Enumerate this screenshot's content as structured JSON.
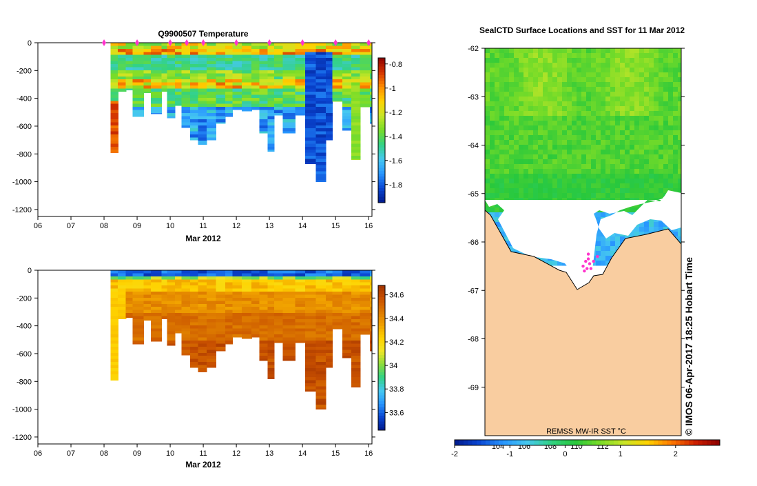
{
  "colors": {
    "sst_cmap": [
      "#001a8c",
      "#0a46d2",
      "#2896ff",
      "#46c8f0",
      "#32d284",
      "#28c83c",
      "#78dc28",
      "#c8e628",
      "#ffd200",
      "#ff7800",
      "#cc1e00",
      "#8c0000"
    ],
    "sal_cmap": [
      "#001a8c",
      "#0a46d2",
      "#2896ff",
      "#46c8f0",
      "#32d284",
      "#8cdc3c",
      "#f0e628",
      "#ffd200",
      "#f0a000",
      "#dc7800",
      "#c85000",
      "#a03200"
    ],
    "temp_cmap": [
      "#001a8c",
      "#0a46d2",
      "#2896ff",
      "#46c8f0",
      "#32d284",
      "#78dc28",
      "#c8e628",
      "#ffd200",
      "#ff8c00",
      "#d23200",
      "#8c0000"
    ],
    "land": "#f9cda0",
    "coast": "#000000",
    "ice": "#ffffff",
    "marker": "#ff33cc"
  },
  "chart_data": [
    {
      "type": "heatmap",
      "title": "Q9900507  Temperature",
      "xlabel": "Mar 2012",
      "ylabel": "",
      "x_ticks": [
        "06",
        "07",
        "08",
        "09",
        "10",
        "11",
        "12",
        "13",
        "14",
        "15",
        "16"
      ],
      "xlim": [
        6,
        16.1
      ],
      "ylim": [
        -1250,
        0
      ],
      "y_ticks": [
        0,
        -200,
        -400,
        -600,
        -800,
        -1000,
        -1200
      ],
      "colorbar": {
        "min": -1.95,
        "max": -0.75,
        "ticks": [
          -0.8,
          -1,
          -1.2,
          -1.4,
          -1.6,
          -1.8
        ],
        "tick_labels": [
          "-0.8",
          "-1",
          "-1.2",
          "-1.4",
          "-1.6",
          "-1.8"
        ]
      },
      "profile_markers": [
        8,
        9,
        10,
        10.5,
        11,
        12,
        13,
        14,
        15,
        16
      ],
      "profiles": [
        {
          "t": 8.2,
          "w": 0.22,
          "max_depth": 790
        },
        {
          "t": 8.42,
          "w": 0.24,
          "max_depth": 350
        },
        {
          "t": 8.66,
          "w": 0.2,
          "max_depth": 340
        },
        {
          "t": 8.86,
          "w": 0.34,
          "max_depth": 530
        },
        {
          "t": 9.2,
          "w": 0.22,
          "max_depth": 360
        },
        {
          "t": 9.42,
          "w": 0.32,
          "max_depth": 510
        },
        {
          "t": 9.74,
          "w": 0.16,
          "max_depth": 350
        },
        {
          "t": 9.9,
          "w": 0.24,
          "max_depth": 540
        },
        {
          "t": 10.14,
          "w": 0.2,
          "max_depth": 450
        },
        {
          "t": 10.34,
          "w": 0.26,
          "max_depth": 610
        },
        {
          "t": 10.6,
          "w": 0.24,
          "max_depth": 700
        },
        {
          "t": 10.84,
          "w": 0.26,
          "max_depth": 730
        },
        {
          "t": 11.1,
          "w": 0.28,
          "max_depth": 700
        },
        {
          "t": 11.38,
          "w": 0.28,
          "max_depth": 580
        },
        {
          "t": 11.66,
          "w": 0.22,
          "max_depth": 530
        },
        {
          "t": 11.88,
          "w": 0.28,
          "max_depth": 480
        },
        {
          "t": 12.16,
          "w": 0.3,
          "max_depth": 490
        },
        {
          "t": 12.46,
          "w": 0.24,
          "max_depth": 480
        },
        {
          "t": 12.7,
          "w": 0.24,
          "max_depth": 650
        },
        {
          "t": 12.94,
          "w": 0.2,
          "max_depth": 780
        },
        {
          "t": 13.14,
          "w": 0.26,
          "max_depth": 520
        },
        {
          "t": 13.4,
          "w": 0.38,
          "max_depth": 650
        },
        {
          "t": 13.78,
          "w": 0.3,
          "max_depth": 520
        },
        {
          "t": 14.08,
          "w": 0.32,
          "max_depth": 870
        },
        {
          "t": 14.4,
          "w": 0.3,
          "max_depth": 1000
        },
        {
          "t": 14.7,
          "w": 0.2,
          "max_depth": 700
        },
        {
          "t": 14.9,
          "w": 0.3,
          "max_depth": 420
        },
        {
          "t": 15.2,
          "w": 0.28,
          "max_depth": 630
        },
        {
          "t": 15.48,
          "w": 0.26,
          "max_depth": 840
        },
        {
          "t": 15.74,
          "w": 0.3,
          "max_depth": 460
        },
        {
          "t": 16.04,
          "w": 0.06,
          "max_depth": 580
        }
      ]
    },
    {
      "type": "heatmap",
      "title": "",
      "xlabel": "Mar 2012",
      "ylabel": "",
      "x_ticks": [
        "06",
        "07",
        "08",
        "09",
        "10",
        "11",
        "12",
        "13",
        "14",
        "15",
        "16"
      ],
      "xlim": [
        6,
        16.1
      ],
      "ylim": [
        -1250,
        0
      ],
      "y_ticks": [
        0,
        -200,
        -400,
        -600,
        -800,
        -1000,
        -1200
      ],
      "colorbar": {
        "min": 33.45,
        "max": 34.68,
        "ticks": [
          34.6,
          34.4,
          34.2,
          34,
          33.8,
          33.6
        ],
        "tick_labels": [
          "34.6",
          "34.4",
          "34.2",
          "34",
          "33.8",
          "33.6"
        ]
      }
    },
    {
      "type": "heatmap",
      "title": "SealCTD Surface Locations and SST for 11 Mar 2012",
      "xlim": [
        103,
        118
      ],
      "ylim": [
        -70,
        -62
      ],
      "y_ticks": [
        -62,
        -63,
        -64,
        -65,
        -66,
        -67,
        -68,
        -69
      ],
      "x_ticks_partial": [
        "104",
        "106",
        "108",
        "110",
        "112"
      ],
      "colorbar": {
        "min": -2,
        "max": 2.8,
        "ticks": [
          -2,
          -1,
          0,
          1,
          2
        ],
        "tick_labels": [
          "-2",
          "-1",
          "0",
          "1",
          "2"
        ]
      },
      "colorbar_label": "REMSS MW-IR SST °C",
      "seal_locations": [
        {
          "lon": 110.5,
          "lat": -66.5
        },
        {
          "lon": 110.7,
          "lat": -66.4
        },
        {
          "lon": 110.9,
          "lat": -66.35
        },
        {
          "lon": 111.0,
          "lat": -66.45
        },
        {
          "lon": 110.8,
          "lat": -66.55
        },
        {
          "lon": 111.3,
          "lat": -66.4
        },
        {
          "lon": 111.6,
          "lat": -66.3
        },
        {
          "lon": 110.6,
          "lat": -66.6
        },
        {
          "lon": 110.9,
          "lat": -66.25
        },
        {
          "lon": 111.1,
          "lat": -66.55
        }
      ]
    }
  ],
  "footer": {
    "credit": "© IMOS 06-Apr-2017 18:25 Hobart Time"
  }
}
